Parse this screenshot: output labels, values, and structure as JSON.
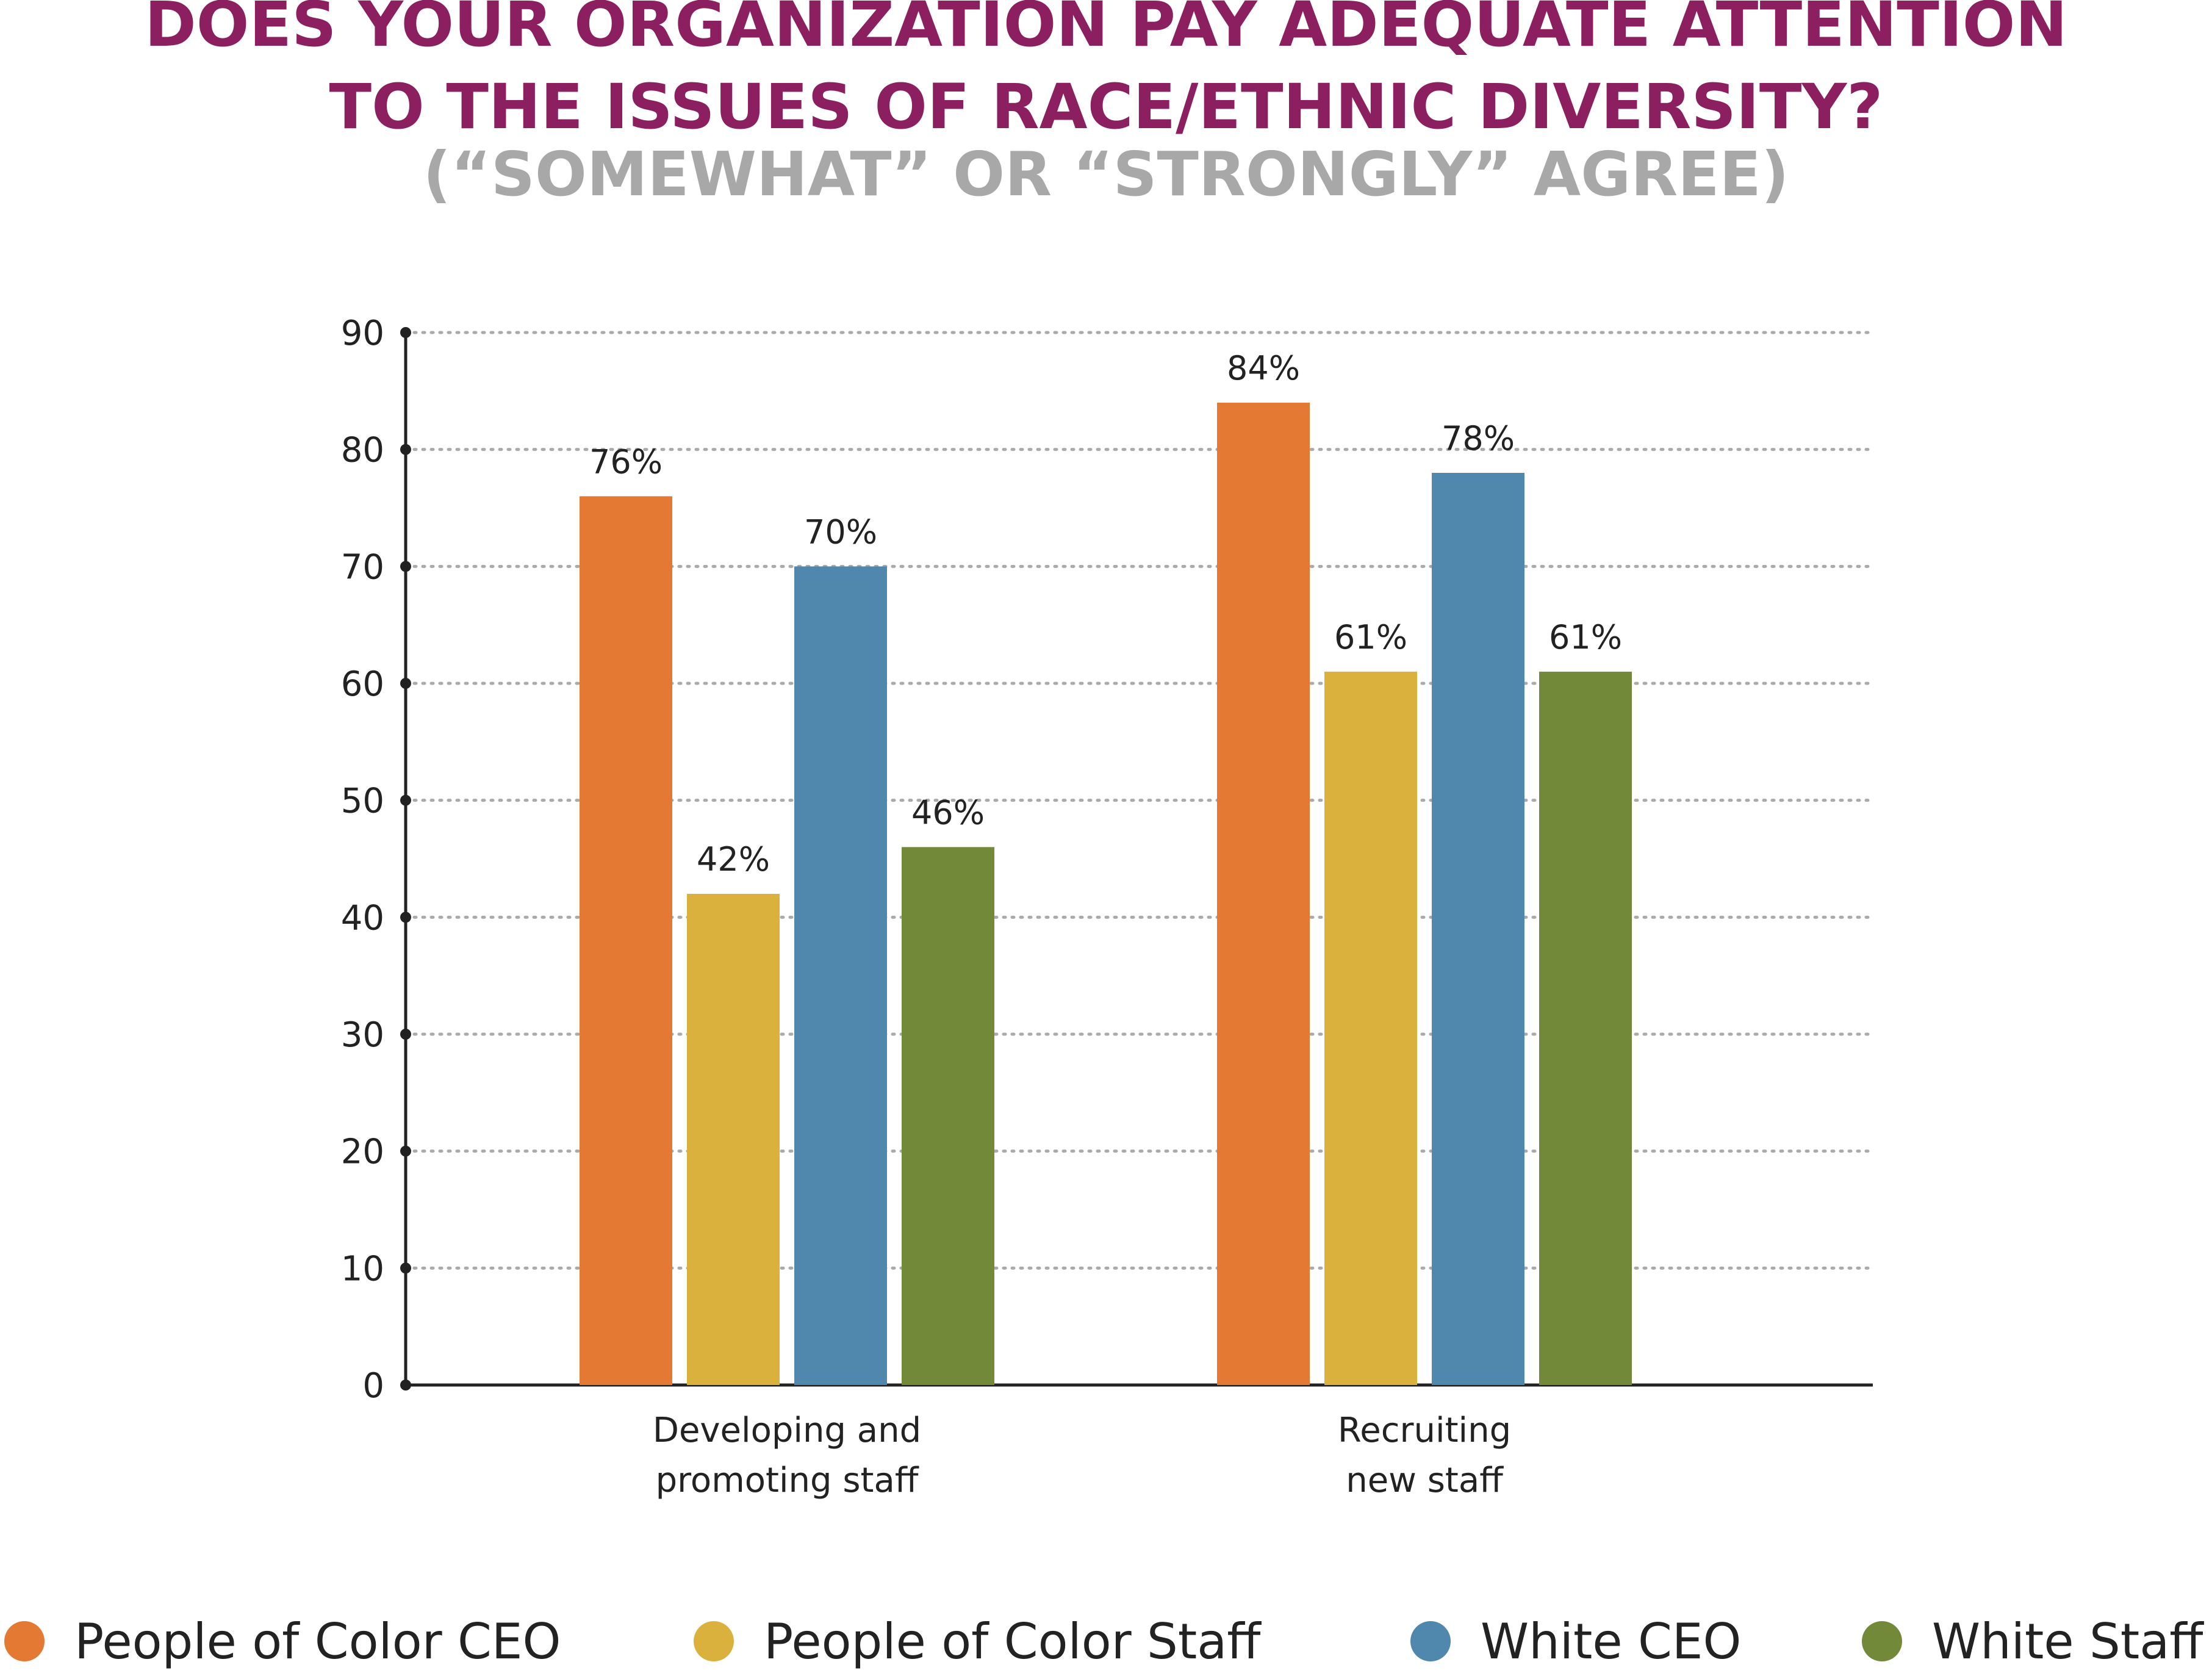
{
  "chart_data": {
    "type": "bar",
    "title_line1": "DOES YOUR ORGANIZATION PAY ADEQUATE ATTENTION",
    "title_line2": "TO THE ISSUES OF RACE/ETHNIC DIVERSITY?",
    "subtitle": "(“SOMEWHAT” OR “STRONGLY” AGREE)",
    "categories": [
      [
        "Developing and",
        "promoting staff"
      ],
      [
        "Recruiting",
        "new staff"
      ]
    ],
    "series": [
      {
        "name": "People of Color CEO",
        "color": "#E47933",
        "values": [
          76,
          84
        ],
        "labels": [
          "76%",
          "84%"
        ]
      },
      {
        "name": "People of Color Staff",
        "color": "#DBB13D",
        "values": [
          42,
          61
        ],
        "labels": [
          "42%",
          "61%"
        ]
      },
      {
        "name": "White CEO",
        "color": "#5087AD",
        "values": [
          70,
          78
        ],
        "labels": [
          "70%",
          "78%"
        ]
      },
      {
        "name": "White Staff",
        "color": "#73893A",
        "values": [
          46,
          61
        ],
        "labels": [
          "46%",
          "61%"
        ]
      }
    ],
    "ylim": [
      0,
      90
    ],
    "yticks": [
      0,
      10,
      20,
      30,
      40,
      50,
      60,
      70,
      80,
      90
    ],
    "grid": true,
    "legend_position": "bottom",
    "colors": {
      "title": "#8B1F5F",
      "subtitle": "#A8A8A8",
      "axis": "#222222",
      "grid": "#AAAAAA"
    }
  }
}
